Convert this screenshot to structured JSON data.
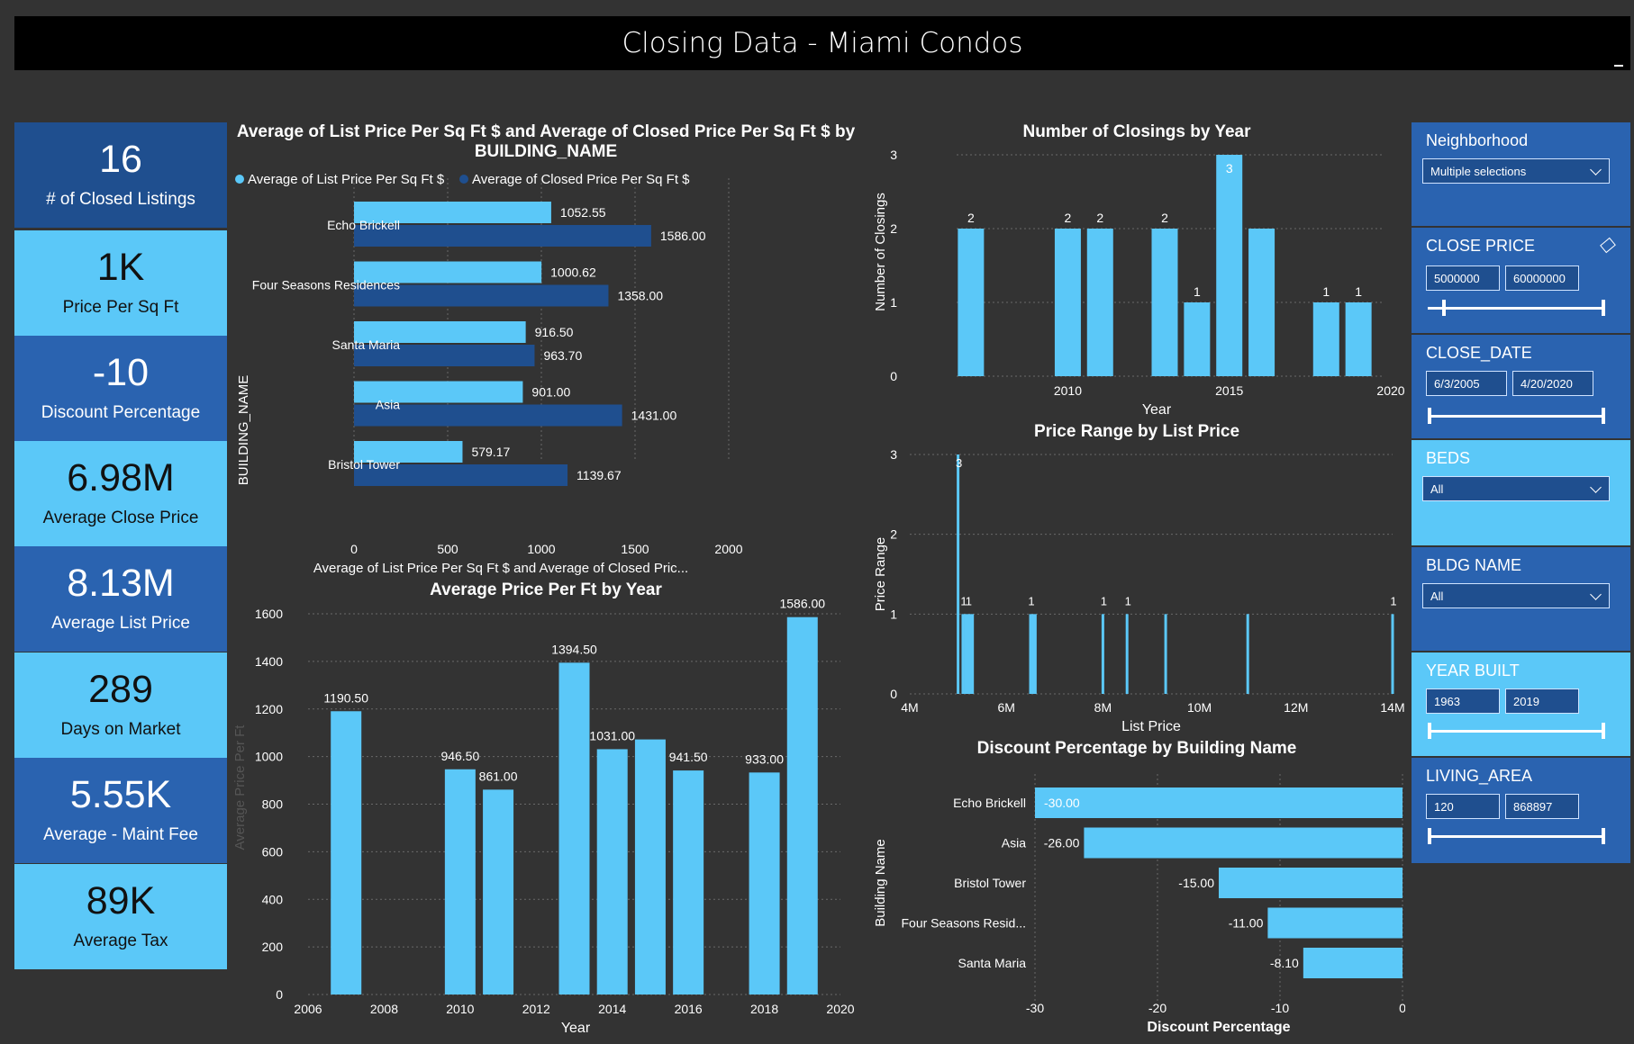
{
  "header": {
    "title": "Closing Data - Miami Condos"
  },
  "kpis": [
    {
      "value": "16",
      "label": "# of Closed Listings"
    },
    {
      "value": "1K",
      "label": "Price Per Sq Ft"
    },
    {
      "value": "-10",
      "label": "Discount Percentage"
    },
    {
      "value": "6.98M",
      "label": "Average Close Price"
    },
    {
      "value": "8.13M",
      "label": "Average List Price"
    },
    {
      "value": "289",
      "label": "Days on Market"
    },
    {
      "value": "5.55K",
      "label": "Average - Maint Fee"
    },
    {
      "value": "89K",
      "label": "Average Tax"
    }
  ],
  "slicers": {
    "neighborhood": {
      "title": "Neighborhood",
      "value": "Multiple selections"
    },
    "close_price": {
      "title": "CLOSE PRICE",
      "min": "5000000",
      "max": "60000000"
    },
    "close_date": {
      "title": "CLOSE_DATE",
      "min": "6/3/2005",
      "max": "4/20/2020"
    },
    "beds": {
      "title": "BEDS",
      "value": "All"
    },
    "bldg_name": {
      "title": "BLDG NAME",
      "value": "All"
    },
    "year_built": {
      "title": "YEAR BUILT",
      "min": "1963",
      "max": "2019"
    },
    "living_area": {
      "title": "LIVING_AREA",
      "min": "120",
      "max": "868897"
    }
  },
  "colors": {
    "light": "#5bc8f8",
    "dark": "#1f4f8f",
    "bg": "#333333"
  },
  "chart_data": [
    {
      "id": "price_sqft_by_building",
      "type": "bar",
      "orientation": "horizontal",
      "title": "Average of List Price Per Sq Ft $ and Average of Closed Price Per Sq Ft $ by BUILDING_NAME",
      "xlabel": "Average of List Price Per Sq Ft $ and Average of Closed Pric...",
      "ylabel": "BUILDING_NAME",
      "categories": [
        "Echo Brickell",
        "Four Seasons Residences",
        "Santa Maria",
        "Asia",
        "Bristol Tower"
      ],
      "series": [
        {
          "name": "Average of List Price Per Sq Ft $",
          "values": [
            1052.55,
            1000.62,
            916.5,
            901.0,
            579.17
          ],
          "labels": [
            "1052.55",
            "1000.62",
            "916.50",
            "901.00",
            "579.17"
          ]
        },
        {
          "name": "Average of Closed Price Per Sq Ft $",
          "values": [
            1586.0,
            1358.0,
            963.7,
            1431.0,
            1139.67
          ],
          "labels": [
            "1586.00",
            "1358.00",
            "963.70",
            "1431.00",
            "1139.67"
          ]
        }
      ],
      "xlim": [
        0,
        2000
      ],
      "xticks": [
        0,
        500,
        1000,
        1500,
        2000
      ],
      "legend": "top-left",
      "grid": true
    },
    {
      "id": "avg_price_per_ft_by_year",
      "type": "bar",
      "title": "Average Price Per Ft by Year",
      "xlabel": "Year",
      "ylabel": "Average Price Per Ft",
      "x": [
        2007,
        2010,
        2011,
        2013,
        2014,
        2015,
        2016,
        2018,
        2019
      ],
      "values": [
        1190.5,
        946.5,
        861.0,
        1394.5,
        1031.0,
        1072.0,
        941.5,
        933.0,
        1586.0
      ],
      "labels": [
        "1190.50",
        "946.50",
        "861.00",
        "1394.50",
        "1031.00",
        null,
        "941.50",
        "933.00",
        "1586.00"
      ],
      "xlim": [
        2006,
        2020
      ],
      "xticks": [
        2006,
        2008,
        2010,
        2012,
        2014,
        2016,
        2018,
        2020
      ],
      "ylim": [
        0,
        1600
      ],
      "yticks": [
        0,
        200,
        400,
        600,
        800,
        1000,
        1200,
        1400,
        1600
      ],
      "grid": true
    },
    {
      "id": "closings_by_year",
      "type": "bar",
      "title": "Number of Closings by Year",
      "xlabel": "Year",
      "ylabel": "Number of Closings",
      "x": [
        2007,
        2010,
        2011,
        2013,
        2014,
        2015,
        2016,
        2018,
        2019
      ],
      "values": [
        2,
        2,
        2,
        2,
        1,
        3,
        2,
        1,
        1
      ],
      "labels": [
        "2",
        "2",
        "2",
        "2",
        "1",
        "3",
        null,
        "1",
        "1"
      ],
      "xlim": [
        2006,
        2020
      ],
      "xticks": [
        2010,
        2015,
        2020
      ],
      "ylim": [
        0,
        3
      ],
      "yticks": [
        0,
        1,
        2,
        3
      ],
      "grid": true
    },
    {
      "id": "price_range_by_list_price",
      "type": "bar",
      "title": "Price Range by List Price",
      "xlabel": "List Price",
      "ylabel": "Price Range",
      "x": [
        5000000,
        5100000,
        5150000,
        5200000,
        5250000,
        5300000,
        6500000,
        6550000,
        6600000,
        8000000,
        8500000,
        9300000,
        11000000,
        14000000
      ],
      "values": [
        3,
        1,
        1,
        1,
        1,
        1,
        1,
        1,
        1,
        1,
        1,
        1,
        1,
        1
      ],
      "labels": [
        "3",
        "1",
        null,
        "1",
        null,
        null,
        "1",
        null,
        null,
        "1",
        "1",
        null,
        null,
        "1"
      ],
      "xlim": [
        4000000,
        14000000
      ],
      "xticks": [
        4000000,
        6000000,
        8000000,
        10000000,
        12000000,
        14000000
      ],
      "xticklabels": [
        "4M",
        "6M",
        "8M",
        "10M",
        "12M",
        "14M"
      ],
      "ylim": [
        0,
        3
      ],
      "yticks": [
        0,
        1,
        2,
        3
      ],
      "grid": true
    },
    {
      "id": "discount_by_building",
      "type": "bar",
      "orientation": "horizontal",
      "title": "Discount Percentage by Building Name",
      "xlabel": "Discount Percentage",
      "ylabel": "Building Name",
      "categories": [
        "Echo Brickell",
        "Asia",
        "Bristol Tower",
        "Four Seasons Resid...",
        "Santa Maria"
      ],
      "values": [
        -30.0,
        -26.0,
        -15.0,
        -11.0,
        -8.1
      ],
      "labels": [
        "-30.00",
        "-26.00",
        "-15.00",
        "-11.00",
        "-8.10"
      ],
      "xlim": [
        -30,
        0
      ],
      "xticks": [
        -30,
        -20,
        -10,
        0
      ],
      "grid": true
    }
  ]
}
